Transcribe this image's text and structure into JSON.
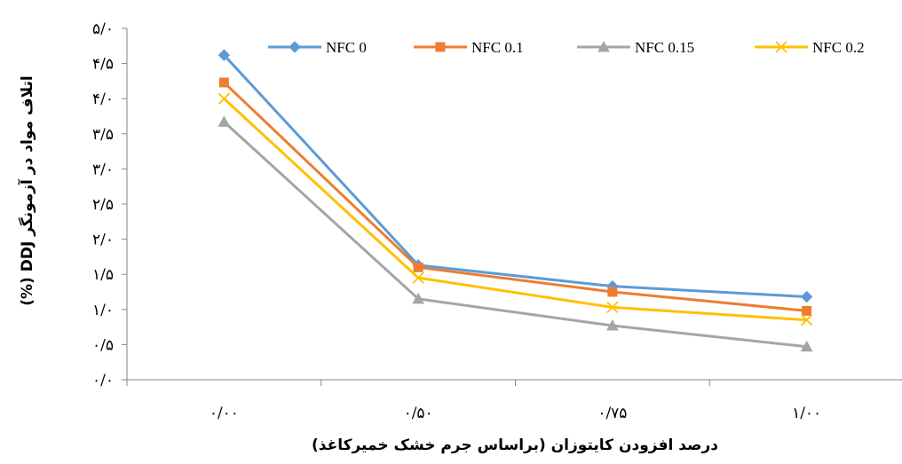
{
  "chart_data": {
    "type": "line",
    "categories": [
      "۰/۰۰",
      "۰/۵۰",
      "۰/۷۵",
      "۱/۰۰"
    ],
    "series": [
      {
        "name": "NFC 0",
        "values": [
          4.62,
          1.63,
          1.33,
          1.18
        ],
        "color": "#5B9BD5",
        "marker": "diamond"
      },
      {
        "name": "NFC 0.1",
        "values": [
          4.23,
          1.6,
          1.25,
          0.98
        ],
        "color": "#ED7D31",
        "marker": "square"
      },
      {
        "name": "NFC 0.15",
        "values": [
          3.67,
          1.15,
          0.77,
          0.47
        ],
        "color": "#A5A5A5",
        "marker": "triangle"
      },
      {
        "name": "NFC 0.2",
        "values": [
          4.0,
          1.45,
          1.03,
          0.85
        ],
        "color": "#FFC000",
        "marker": "x"
      }
    ],
    "y_ticks": [
      "۰/۰",
      "۰/۵",
      "۱/۰",
      "۱/۵",
      "۲/۰",
      "۲/۵",
      "۳/۰",
      "۳/۵",
      "۴/۰",
      "۴/۵",
      "۵/۰"
    ],
    "ylim": [
      0,
      5
    ],
    "xlabel": "درصد افزودن کایتوزان (براساس جرم خشک خمیرکاغذ)",
    "ylabel": "اتلاف مواد در آزمونگر DDJ (%)",
    "legend_position": "top",
    "grid": false
  }
}
